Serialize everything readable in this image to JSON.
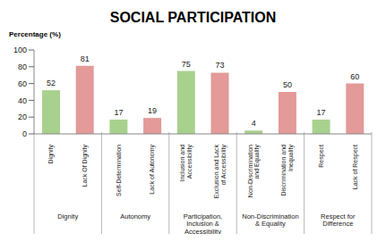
{
  "chart_data": {
    "type": "bar",
    "title": "SOCIAL PARTICIPATION",
    "y_label": "Percentage (%)",
    "categories": [
      "Dignity",
      "Lack Of Dignity",
      "Self-Determination",
      "Lack of Autonomy",
      "Inclusion and Accessibility",
      "Exclusion and Lack of Accessibility",
      "Non-Discrimination and Equality",
      "Discrimination and Inequality",
      "Respect",
      "Lack of Respect"
    ],
    "values": [
      52,
      81,
      17,
      19,
      75,
      73,
      4,
      50,
      17,
      60
    ],
    "groups": [
      "Dignity",
      "Dignity",
      "Autonomy",
      "Autonomy",
      "Participation, Inclusion & Accessibility",
      "Participation, Inclusion & Accessibility",
      "Non-Discrimination & Equality",
      "Non-Discrimination & Equality",
      "Respect for Difference",
      "Respect for Difference"
    ],
    "colors": [
      "#a9d18e",
      "#e39a98",
      "#a9d18e",
      "#e39a98",
      "#a9d18e",
      "#e39a98",
      "#a9d18e",
      "#e39a98",
      "#a9d18e",
      "#e39a98"
    ],
    "ylim": [
      0,
      100
    ],
    "yticks": [
      0,
      20,
      40,
      60,
      80,
      100
    ],
    "grid": false,
    "data_labels": true
  }
}
